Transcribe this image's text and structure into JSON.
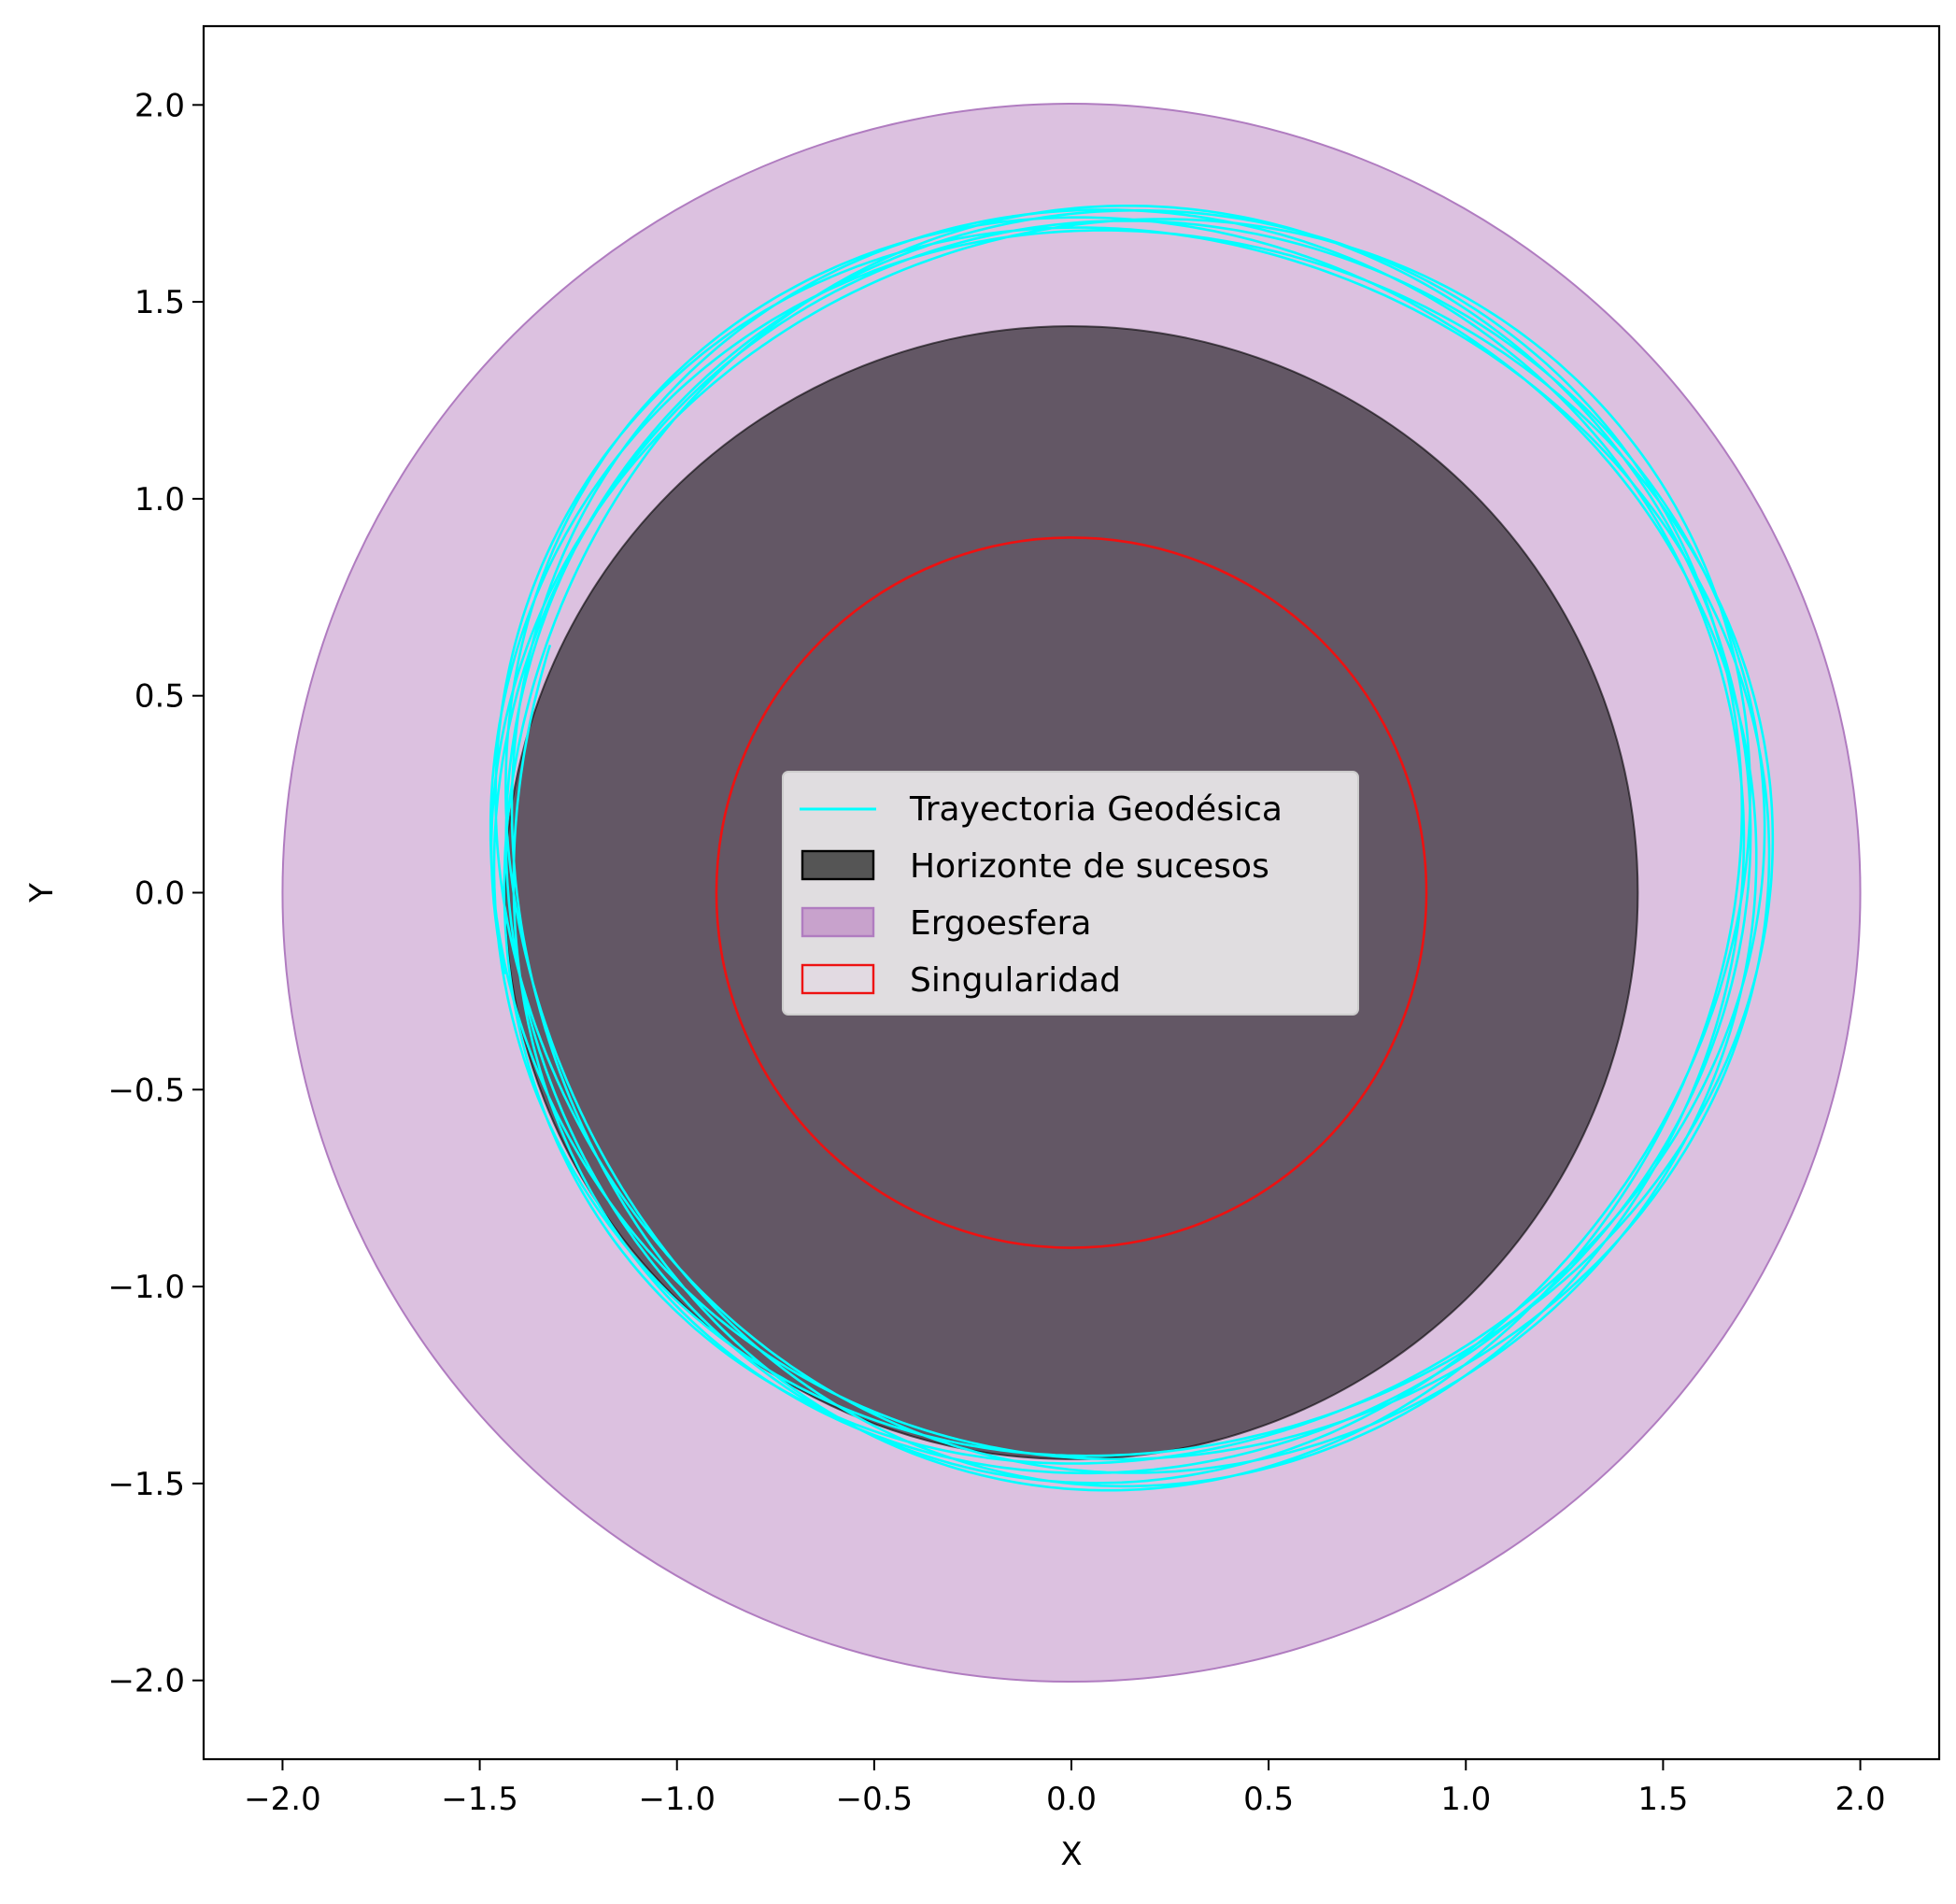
{
  "chart_data": {
    "type": "scatter",
    "title": "",
    "xlabel": "X",
    "ylabel": "Y",
    "xlim": [
      -2.2,
      2.2
    ],
    "ylim": [
      -2.2,
      2.2
    ],
    "x_ticks": [
      -2.0,
      -1.5,
      -1.0,
      -0.5,
      0.0,
      0.5,
      1.0,
      1.5,
      2.0
    ],
    "y_ticks": [
      -2.0,
      -1.5,
      -1.0,
      -0.5,
      0.0,
      0.5,
      1.0,
      1.5,
      2.0
    ],
    "x_tick_labels": [
      "−2.0",
      "−1.5",
      "−1.0",
      "−0.5",
      "0.0",
      "0.5",
      "1.0",
      "1.5",
      "2.0"
    ],
    "y_tick_labels": [
      "−2.0",
      "−1.5",
      "−1.0",
      "−0.5",
      "0.0",
      "0.5",
      "1.0",
      "1.5",
      "2.0"
    ],
    "grid": false,
    "legend_position": "center",
    "shapes": [
      {
        "name": "Ergoesfera",
        "kind": "filled-circle",
        "center": [
          0,
          0
        ],
        "radius": 2.0,
        "fill": "#c9a0d0",
        "fill_alpha": 0.65,
        "stroke": "#b07cc0"
      },
      {
        "name": "Horizonte de sucesos",
        "kind": "filled-circle",
        "center": [
          0,
          0
        ],
        "radius": 1.436,
        "fill": "#000000",
        "fill_alpha": 0.55,
        "stroke": "#000000"
      },
      {
        "name": "Singularidad",
        "kind": "circle-outline",
        "center": [
          0,
          0
        ],
        "radius": 0.9,
        "stroke": "#ee1111"
      }
    ],
    "trajectory": {
      "name": "Trayectoria Geodésica",
      "color": "#00ffff",
      "turns": 9,
      "start_point": [
        -1.58,
        -0.32
      ],
      "end_point": [
        -1.38,
        0.55
      ],
      "x_range": [
        -1.66,
        1.72
      ],
      "y_range": [
        -1.53,
        1.71
      ]
    },
    "legend": [
      {
        "label": "Trayectoria Geodésica",
        "swatch": "line",
        "color": "#00ffff"
      },
      {
        "label": "Horizonte de sucesos",
        "swatch": "patch",
        "fill": "#555555",
        "stroke": "#000000"
      },
      {
        "label": "Ergoesfera",
        "swatch": "patch",
        "fill": "#c8a2cc",
        "stroke": "#b07cc0"
      },
      {
        "label": "Singularidad",
        "swatch": "patch",
        "fill": "#e2dae2",
        "stroke": "#ee1111"
      }
    ]
  }
}
